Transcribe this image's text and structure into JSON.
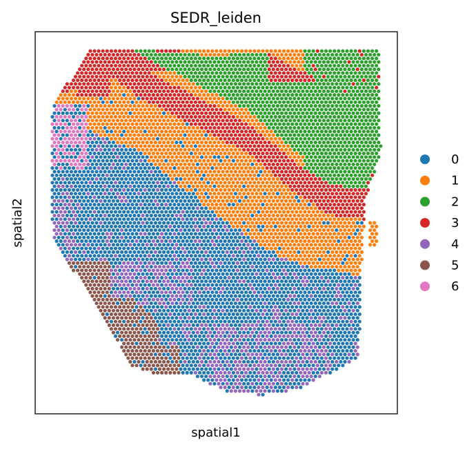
{
  "chart_data": {
    "type": "scatter",
    "title": "SEDR_leiden",
    "xlabel": "spatial1",
    "ylabel": "spatial2",
    "grid": false,
    "legend": "right",
    "series": [
      {
        "name": "0",
        "color": "#1f77b4"
      },
      {
        "name": "1",
        "color": "#ff7f0e"
      },
      {
        "name": "2",
        "color": "#2ca02c"
      },
      {
        "name": "3",
        "color": "#d62728"
      },
      {
        "name": "4",
        "color": "#9467bd"
      },
      {
        "name": "5",
        "color": "#8c564b"
      },
      {
        "name": "6",
        "color": "#e377c2"
      }
    ]
  }
}
